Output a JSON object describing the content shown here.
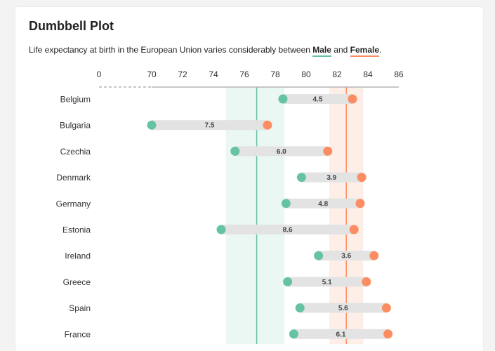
{
  "header": {
    "title": "Dumbbell Plot",
    "subtitle_before": "Life expectancy at birth in the European Union varies considerably between ",
    "male_label": "Male",
    "subtitle_middle": " and ",
    "female_label": "Female",
    "subtitle_after": "."
  },
  "colors": {
    "male": "#66c2a5",
    "female": "#fc8d62",
    "bar": "#e3e3e3",
    "male_band": "#eaf7f2",
    "female_band": "#fdeee7"
  },
  "chart_data": {
    "type": "dumbbell",
    "title": "Dumbbell Plot",
    "x_ticks": [
      0,
      70,
      72,
      74,
      76,
      78,
      80,
      82,
      84,
      86
    ],
    "x_axis_break": [
      0,
      70
    ],
    "xlim": [
      70,
      86
    ],
    "averages": {
      "male": {
        "mean": 76.8,
        "band": [
          74.8,
          78.6
        ]
      },
      "female": {
        "mean": 82.6,
        "band": [
          81.5,
          83.7
        ]
      }
    },
    "categories": [
      "Belgium",
      "Bulgaria",
      "Czechia",
      "Denmark",
      "Germany",
      "Estonia",
      "Ireland",
      "Greece",
      "Spain",
      "France"
    ],
    "series": [
      {
        "name": "Male",
        "values": [
          78.5,
          70.0,
          75.4,
          79.7,
          78.7,
          74.5,
          80.8,
          78.8,
          79.6,
          79.2
        ]
      },
      {
        "name": "Female",
        "values": [
          83.0,
          77.5,
          81.4,
          83.6,
          83.5,
          83.1,
          84.4,
          83.9,
          85.2,
          85.3
        ]
      }
    ],
    "differences": [
      "4.5",
      "7.5",
      "6.0",
      "3.9",
      "4.8",
      "8.6",
      "3.6",
      "5.1",
      "5.6",
      "6.1"
    ]
  }
}
